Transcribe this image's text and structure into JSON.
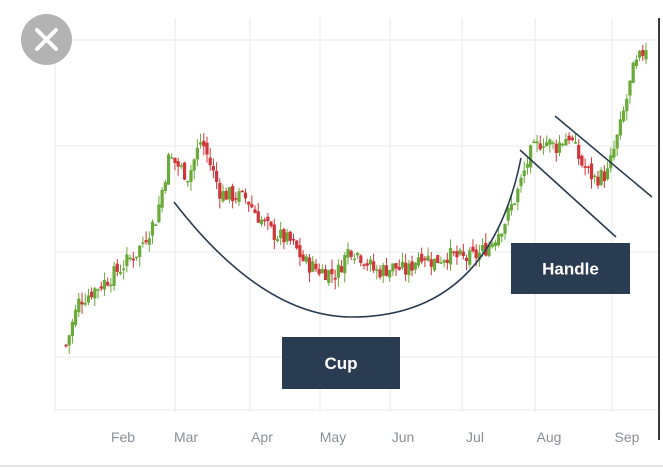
{
  "chart_data": {
    "type": "candlestick",
    "title": "",
    "xlabel": "",
    "ylabel": "",
    "grid": true,
    "months": [
      "Feb",
      "Mar",
      "Apr",
      "May",
      "Jun",
      "Jul",
      "Aug",
      "Sep"
    ],
    "colors": {
      "up": "#6aaa3a",
      "down": "#d0353a",
      "pattern": "#2a3c52",
      "grid": "#e8e8e8",
      "axis": "#8a8f98"
    },
    "annotations": [
      {
        "label": "Cup",
        "pattern": "cup"
      },
      {
        "label": "Handle",
        "pattern": "handle"
      }
    ],
    "price_path": [
      [
        0,
        6
      ],
      [
        2,
        24
      ],
      [
        7,
        34
      ],
      [
        11,
        44
      ],
      [
        14,
        58
      ],
      [
        16,
        83
      ],
      [
        19,
        75
      ],
      [
        21,
        90
      ],
      [
        24,
        68
      ],
      [
        28,
        66
      ],
      [
        30,
        58
      ],
      [
        32,
        52
      ],
      [
        35,
        48
      ],
      [
        37,
        40
      ],
      [
        39,
        37
      ],
      [
        42,
        35
      ],
      [
        44,
        46
      ],
      [
        46,
        42
      ],
      [
        48,
        36
      ],
      [
        51,
        38
      ],
      [
        53,
        36
      ],
      [
        55,
        44
      ],
      [
        57,
        40
      ],
      [
        59,
        43
      ],
      [
        62,
        41
      ],
      [
        64,
        43
      ],
      [
        66,
        48
      ],
      [
        68,
        56
      ],
      [
        70,
        68
      ],
      [
        72,
        84
      ],
      [
        74,
        90
      ],
      [
        76,
        87
      ],
      [
        78,
        92
      ],
      [
        80,
        80
      ],
      [
        82,
        74
      ],
      [
        84,
        76
      ],
      [
        86,
        95
      ],
      [
        88,
        118
      ],
      [
        90,
        128
      ]
    ]
  },
  "close_icon": "close-x-icon"
}
